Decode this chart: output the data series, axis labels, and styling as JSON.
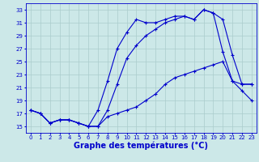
{
  "background_color": "#cce8e8",
  "line_color": "#0000cc",
  "xlabel": "Graphe des températures (°C)",
  "xlabel_fontsize": 7,
  "ylim": [
    14,
    34
  ],
  "xlim": [
    -0.5,
    23.5
  ],
  "yticks": [
    15,
    17,
    19,
    21,
    23,
    25,
    27,
    29,
    31,
    33
  ],
  "xticks": [
    0,
    1,
    2,
    3,
    4,
    5,
    6,
    7,
    8,
    9,
    10,
    11,
    12,
    13,
    14,
    15,
    16,
    17,
    18,
    19,
    20,
    21,
    22,
    23
  ],
  "grid_color": "#aacccc",
  "line1_x": [
    0,
    1,
    2,
    3,
    4,
    5,
    6,
    7,
    8,
    9,
    10,
    11,
    12,
    13,
    14,
    15,
    16,
    17,
    18,
    19,
    20,
    21,
    22,
    23
  ],
  "line1_y": [
    17.5,
    17.0,
    15.5,
    16.0,
    16.0,
    15.5,
    15.0,
    15.0,
    16.5,
    17.0,
    17.5,
    18.0,
    19.0,
    20.0,
    21.5,
    22.5,
    23.0,
    23.5,
    24.0,
    24.5,
    25.0,
    22.0,
    20.5,
    19.0
  ],
  "line2_x": [
    0,
    1,
    2,
    3,
    4,
    5,
    6,
    7,
    8,
    9,
    10,
    11,
    12,
    13,
    14,
    15,
    16,
    17,
    18,
    19,
    20,
    21,
    22,
    23
  ],
  "line2_y": [
    17.5,
    17.0,
    15.5,
    16.0,
    16.0,
    15.5,
    15.0,
    17.5,
    22.0,
    27.0,
    29.5,
    31.5,
    31.0,
    31.0,
    31.5,
    32.0,
    32.0,
    31.5,
    33.0,
    32.5,
    26.5,
    22.0,
    21.5,
    21.5
  ],
  "line3_x": [
    0,
    1,
    2,
    3,
    4,
    5,
    6,
    7,
    8,
    9,
    10,
    11,
    12,
    13,
    14,
    15,
    16,
    17,
    18,
    19,
    20,
    21,
    22,
    23
  ],
  "line3_y": [
    17.5,
    17.0,
    15.5,
    16.0,
    16.0,
    15.5,
    15.0,
    15.0,
    17.5,
    21.5,
    25.5,
    27.5,
    29.0,
    30.0,
    31.0,
    31.5,
    32.0,
    31.5,
    33.0,
    32.5,
    31.5,
    26.0,
    21.5,
    21.5
  ]
}
